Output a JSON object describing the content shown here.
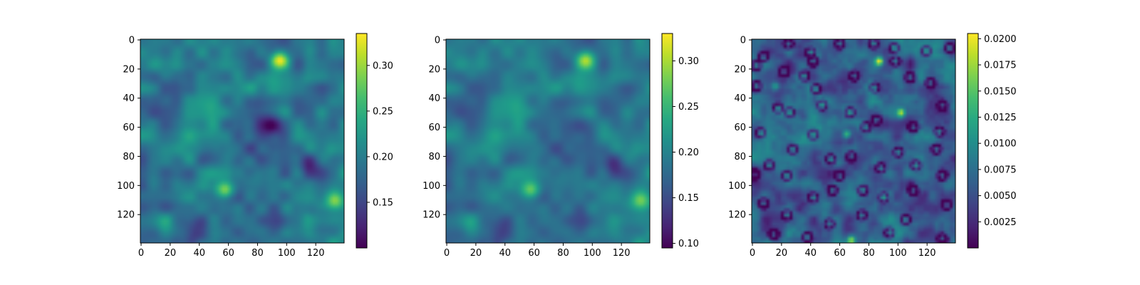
{
  "chart_data": [
    {
      "type": "heatmap",
      "title": "",
      "xlabel": "",
      "ylabel": "",
      "colormap": "viridis",
      "grid": false,
      "x_range": [
        0,
        139
      ],
      "y_range": [
        0,
        139
      ],
      "y_inverted": true,
      "x_ticks": [
        0,
        20,
        40,
        60,
        80,
        100,
        120
      ],
      "y_ticks": [
        0,
        20,
        40,
        60,
        80,
        100,
        120
      ],
      "colorbar_range": [
        0.1,
        0.335
      ],
      "colorbar_ticks": [
        0.15,
        0.2,
        0.25,
        0.3
      ],
      "colorbar_tick_labels": [
        "0.15",
        "0.20",
        "0.25",
        "0.30"
      ],
      "hotspots": [
        {
          "x": 95,
          "y": 14,
          "value": 0.33
        },
        {
          "x": 58,
          "y": 103,
          "value": 0.3
        },
        {
          "x": 133,
          "y": 110,
          "value": 0.27
        }
      ],
      "lows": [
        {
          "x": 115,
          "y": 85,
          "value": 0.1
        },
        {
          "x": 38,
          "y": 133,
          "value": 0.1
        },
        {
          "x": 87,
          "y": 58,
          "value": 0.13
        }
      ]
    },
    {
      "type": "heatmap",
      "title": "",
      "xlabel": "",
      "ylabel": "",
      "colormap": "viridis",
      "grid": false,
      "x_range": [
        0,
        139
      ],
      "y_range": [
        0,
        139
      ],
      "y_inverted": true,
      "x_ticks": [
        0,
        20,
        40,
        60,
        80,
        100,
        120
      ],
      "y_ticks": [
        0,
        20,
        40,
        60,
        80,
        100,
        120
      ],
      "colorbar_range": [
        0.095,
        0.33
      ],
      "colorbar_ticks": [
        0.1,
        0.15,
        0.2,
        0.25,
        0.3
      ],
      "colorbar_tick_labels": [
        "0.10",
        "0.15",
        "0.20",
        "0.25",
        "0.30"
      ],
      "hotspots": [
        {
          "x": 95,
          "y": 14,
          "value": 0.32
        },
        {
          "x": 58,
          "y": 103,
          "value": 0.3
        },
        {
          "x": 133,
          "y": 110,
          "value": 0.27
        }
      ],
      "lows": [
        {
          "x": 113,
          "y": 85,
          "value": 0.1
        },
        {
          "x": 38,
          "y": 133,
          "value": 0.1
        }
      ]
    },
    {
      "type": "heatmap",
      "title": "",
      "xlabel": "",
      "ylabel": "",
      "colormap": "viridis",
      "grid": false,
      "x_range": [
        0,
        139
      ],
      "y_range": [
        0,
        139
      ],
      "y_inverted": true,
      "x_ticks": [
        0,
        20,
        40,
        60,
        80,
        100,
        120
      ],
      "y_ticks": [
        0,
        20,
        40,
        60,
        80,
        100,
        120
      ],
      "colorbar_range": [
        0.0,
        0.0205
      ],
      "colorbar_ticks": [
        0.0025,
        0.005,
        0.0075,
        0.01,
        0.0125,
        0.015,
        0.0175,
        0.02
      ],
      "colorbar_tick_labels": [
        "0.0025",
        "0.0050",
        "0.0075",
        "0.0100",
        "0.0125",
        "0.0150",
        "0.0175",
        "0.0200"
      ],
      "hotspots": [
        {
          "x": 87,
          "y": 15,
          "value": 0.0205
        },
        {
          "x": 65,
          "y": 65,
          "value": 0.016
        },
        {
          "x": 16,
          "y": 32,
          "value": 0.015
        },
        {
          "x": 102,
          "y": 50,
          "value": 0.016
        },
        {
          "x": 68,
          "y": 137,
          "value": 0.017
        }
      ],
      "ring_lows": [
        {
          "x": 25,
          "y": 3
        },
        {
          "x": 60,
          "y": 3
        },
        {
          "x": 83,
          "y": 3
        },
        {
          "x": 97,
          "y": 6
        },
        {
          "x": 135,
          "y": 6
        },
        {
          "x": 8,
          "y": 12
        },
        {
          "x": 40,
          "y": 9
        },
        {
          "x": 42,
          "y": 15
        },
        {
          "x": 119,
          "y": 8
        },
        {
          "x": 98,
          "y": 15
        },
        {
          "x": 3,
          "y": 18
        },
        {
          "x": 22,
          "y": 22
        },
        {
          "x": 36,
          "y": 25
        },
        {
          "x": 70,
          "y": 25
        },
        {
          "x": 108,
          "y": 26
        },
        {
          "x": 3,
          "y": 32
        },
        {
          "x": 44,
          "y": 34
        },
        {
          "x": 84,
          "y": 33
        },
        {
          "x": 122,
          "y": 30
        },
        {
          "x": 130,
          "y": 45
        },
        {
          "x": 18,
          "y": 47
        },
        {
          "x": 48,
          "y": 45
        },
        {
          "x": 85,
          "y": 55
        },
        {
          "x": 26,
          "y": 50
        },
        {
          "x": 67,
          "y": 50
        },
        {
          "x": 110,
          "y": 60
        },
        {
          "x": 128,
          "y": 63
        },
        {
          "x": 6,
          "y": 64
        },
        {
          "x": 42,
          "y": 65
        },
        {
          "x": 78,
          "y": 60
        },
        {
          "x": 126,
          "y": 75
        },
        {
          "x": 28,
          "y": 75
        },
        {
          "x": 100,
          "y": 77
        },
        {
          "x": 54,
          "y": 82
        },
        {
          "x": 12,
          "y": 86
        },
        {
          "x": 68,
          "y": 80
        },
        {
          "x": 88,
          "y": 88
        },
        {
          "x": 112,
          "y": 86
        },
        {
          "x": 2,
          "y": 92
        },
        {
          "x": 24,
          "y": 93
        },
        {
          "x": 60,
          "y": 93
        },
        {
          "x": 130,
          "y": 93
        },
        {
          "x": 42,
          "y": 108
        },
        {
          "x": 55,
          "y": 103
        },
        {
          "x": 76,
          "y": 103
        },
        {
          "x": 110,
          "y": 103
        },
        {
          "x": 90,
          "y": 108
        },
        {
          "x": 8,
          "y": 112
        },
        {
          "x": 133,
          "y": 113
        },
        {
          "x": 24,
          "y": 120
        },
        {
          "x": 75,
          "y": 120
        },
        {
          "x": 105,
          "y": 123
        },
        {
          "x": 53,
          "y": 126
        },
        {
          "x": 15,
          "y": 133
        },
        {
          "x": 38,
          "y": 135
        },
        {
          "x": 94,
          "y": 132
        },
        {
          "x": 130,
          "y": 136
        }
      ]
    }
  ]
}
